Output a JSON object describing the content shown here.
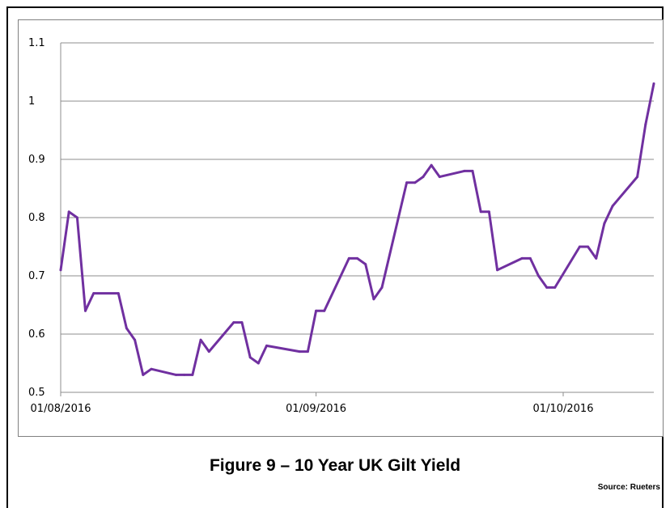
{
  "caption": "Figure 9 – 10 Year UK Gilt Yield",
  "source": "Source: Rueters",
  "colors": {
    "line": "#7030A0",
    "grid": "#8c8c8c",
    "axis": "#8c8c8c"
  },
  "chart_data": {
    "type": "line",
    "title": "",
    "xlabel": "",
    "ylabel": "",
    "ylim": [
      0.5,
      1.1
    ],
    "yticks": [
      "0.5",
      "0.6",
      "0.7",
      "0.8",
      "0.9",
      "1",
      "1.1"
    ],
    "xtick_labels": [
      "01/08/2016",
      "01/09/2016",
      "01/10/2016"
    ],
    "xlim": [
      "2016-08-01",
      "2016-10-12"
    ],
    "grid": true,
    "legend": "none",
    "series": [
      {
        "x": [
          "2016-08-01",
          "2016-08-02",
          "2016-08-03",
          "2016-08-04",
          "2016-08-05",
          "2016-08-08",
          "2016-08-09",
          "2016-08-10",
          "2016-08-11",
          "2016-08-12",
          "2016-08-15",
          "2016-08-16",
          "2016-08-17",
          "2016-08-18",
          "2016-08-19",
          "2016-08-22",
          "2016-08-23",
          "2016-08-24",
          "2016-08-25",
          "2016-08-26",
          "2016-08-30",
          "2016-08-31",
          "2016-09-01",
          "2016-09-02",
          "2016-09-05",
          "2016-09-06",
          "2016-09-07",
          "2016-09-08",
          "2016-09-09",
          "2016-09-12",
          "2016-09-13",
          "2016-09-14",
          "2016-09-15",
          "2016-09-16",
          "2016-09-19",
          "2016-09-20",
          "2016-09-21",
          "2016-09-22",
          "2016-09-23",
          "2016-09-26",
          "2016-09-27",
          "2016-09-28",
          "2016-09-29",
          "2016-09-30",
          "2016-10-03",
          "2016-10-04",
          "2016-10-05",
          "2016-10-06",
          "2016-10-07",
          "2016-10-10",
          "2016-10-11",
          "2016-10-12"
        ],
        "values": [
          0.71,
          0.81,
          0.8,
          0.64,
          0.67,
          0.67,
          0.61,
          0.59,
          0.53,
          0.54,
          0.53,
          0.53,
          0.53,
          0.59,
          0.57,
          0.62,
          0.62,
          0.56,
          0.55,
          0.58,
          0.57,
          0.57,
          0.64,
          0.64,
          0.73,
          0.73,
          0.72,
          0.66,
          0.68,
          0.86,
          0.86,
          0.87,
          0.89,
          0.87,
          0.88,
          0.88,
          0.81,
          0.81,
          0.71,
          0.73,
          0.73,
          0.7,
          0.68,
          0.68,
          0.75,
          0.75,
          0.73,
          0.79,
          0.82,
          0.87,
          0.96,
          1.03
        ]
      }
    ]
  }
}
